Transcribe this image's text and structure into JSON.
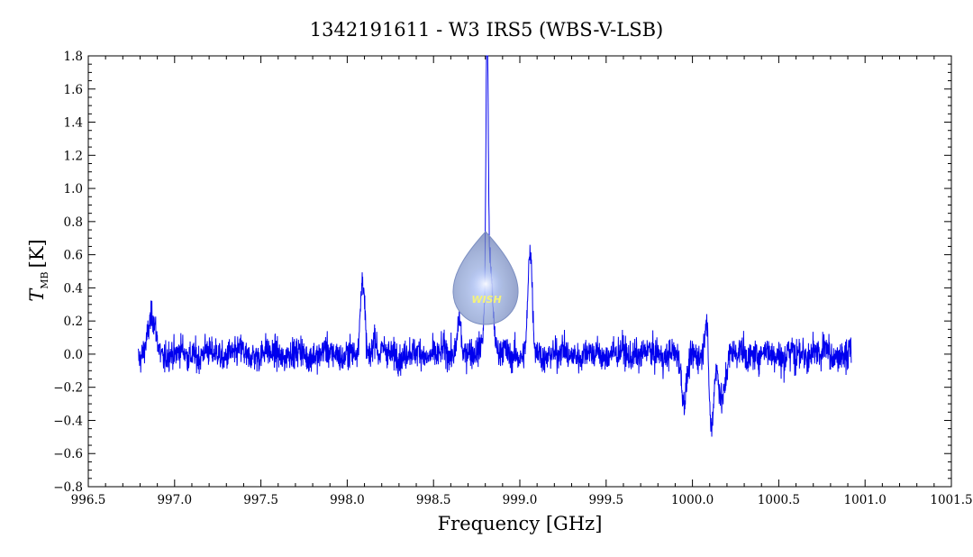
{
  "chart_data": {
    "type": "line",
    "title": "1342191611 - W3 IRS5 (WBS-V-LSB)",
    "xlabel": "Frequency [GHz]",
    "ylabel_main": "T",
    "ylabel_sub": "MB",
    "ylabel_unit": "[K]",
    "xlim": [
      996.5,
      1001.5
    ],
    "ylim": [
      -0.8,
      1.8
    ],
    "x_ticks": [
      996.5,
      997.0,
      997.5,
      998.0,
      998.5,
      999.0,
      999.5,
      1000.0,
      1000.5,
      1001.0,
      1001.5
    ],
    "x_tick_labels": [
      "996.5",
      "997.0",
      "997.5",
      "998.0",
      "998.5",
      "999.0",
      "999.5",
      "1000.0",
      "1000.5",
      "1001.0",
      "1001.5"
    ],
    "y_ticks": [
      -0.8,
      -0.6,
      -0.4,
      -0.2,
      0.0,
      0.2,
      0.4,
      0.6,
      0.8,
      1.0,
      1.2,
      1.4,
      1.6,
      1.8
    ],
    "y_tick_labels": [
      "−0.8",
      "−0.6",
      "−0.4",
      "−0.2",
      "0.0",
      "0.2",
      "0.4",
      "0.6",
      "0.8",
      "1.0",
      "1.2",
      "1.4",
      "1.6",
      "1.8"
    ],
    "grid": false,
    "series": [
      {
        "color": "#0000ee",
        "x_range": [
          996.79,
          1000.92
        ],
        "noise_rms": 0.05,
        "features": [
          {
            "x": 996.87,
            "peak": 0.22,
            "width": 0.02
          },
          {
            "x": 998.09,
            "peak": 0.45,
            "width": 0.012
          },
          {
            "x": 998.16,
            "peak": 0.12,
            "width": 0.01
          },
          {
            "x": 998.65,
            "peak": 0.25,
            "width": 0.01
          },
          {
            "x": 998.81,
            "peak": 1.62,
            "width": 0.006
          },
          {
            "x": 998.82,
            "peak": 0.6,
            "width": 0.02
          },
          {
            "x": 999.06,
            "peak": 0.62,
            "width": 0.012
          },
          {
            "x": 999.95,
            "peak": -0.3,
            "width": 0.015
          },
          {
            "x": 1000.08,
            "peak": 0.2,
            "width": 0.008
          },
          {
            "x": 1000.11,
            "peak": -0.45,
            "width": 0.012
          },
          {
            "x": 1000.17,
            "peak": -0.25,
            "width": 0.02
          }
        ]
      }
    ]
  },
  "logo": {
    "text": "WISH",
    "colors": [
      "#b8c6e6",
      "#8ea3d4",
      "#f4f27a"
    ]
  }
}
